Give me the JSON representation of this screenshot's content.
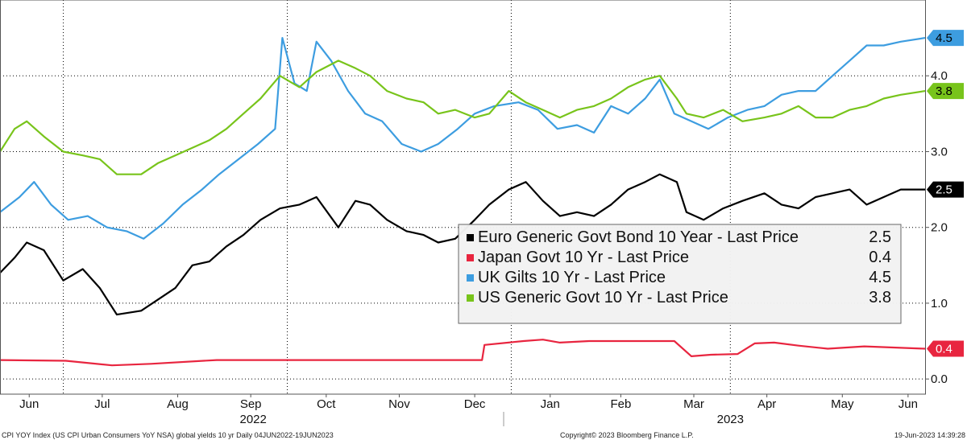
{
  "chart_data": {
    "type": "line",
    "xlim": [
      "2022-06-04",
      "2023-06-19"
    ],
    "ylim": [
      -0.2,
      5.0
    ],
    "yticks": [
      "0.0",
      "1.0",
      "2.0",
      "3.0",
      "4.0"
    ],
    "yticks_values": [
      0,
      1,
      2,
      3,
      4
    ],
    "grid": true,
    "legend_position": "lower-right",
    "months": [
      {
        "label": "Jun",
        "date": "2022-06-16"
      },
      {
        "label": "Jul",
        "date": "2022-07-16"
      },
      {
        "label": "Aug",
        "date": "2022-08-16"
      },
      {
        "label": "Sep",
        "date": "2022-09-15"
      },
      {
        "label": "Oct",
        "date": "2022-10-16"
      },
      {
        "label": "Nov",
        "date": "2022-11-15"
      },
      {
        "label": "Dec",
        "date": "2022-12-16"
      },
      {
        "label": "Jan",
        "date": "2023-01-16"
      },
      {
        "label": "Feb",
        "date": "2023-02-14"
      },
      {
        "label": "Mar",
        "date": "2023-03-16"
      },
      {
        "label": "Apr",
        "date": "2023-04-15"
      },
      {
        "label": "May",
        "date": "2023-05-16"
      },
      {
        "label": "Jun",
        "date": "2023-06-12"
      }
    ],
    "years": [
      {
        "label": "2022",
        "date": "2022-09-16"
      },
      {
        "label": "2023",
        "date": "2023-03-31"
      }
    ],
    "year_divider": "2023-01-01",
    "series": [
      {
        "name": "Euro Generic Govt Bond 10 Year - Last Price",
        "legend_value": "2.5",
        "last": "2.5",
        "color": "#000000",
        "badge_text_color": "#ffffff",
        "x": [
          "2022-06-04",
          "2022-06-10",
          "2022-06-15",
          "2022-06-22",
          "2022-06-30",
          "2022-07-08",
          "2022-07-15",
          "2022-07-22",
          "2022-08-01",
          "2022-08-08",
          "2022-08-15",
          "2022-08-22",
          "2022-08-29",
          "2022-09-05",
          "2022-09-12",
          "2022-09-19",
          "2022-09-27",
          "2022-10-05",
          "2022-10-12",
          "2022-10-21",
          "2022-10-28",
          "2022-11-03",
          "2022-11-10",
          "2022-11-18",
          "2022-11-25",
          "2022-12-01",
          "2022-12-08",
          "2022-12-16",
          "2022-12-22",
          "2022-12-30",
          "2023-01-06",
          "2023-01-13",
          "2023-01-20",
          "2023-01-27",
          "2023-02-03",
          "2023-02-10",
          "2023-02-17",
          "2023-02-24",
          "2023-03-02",
          "2023-03-09",
          "2023-03-13",
          "2023-03-20",
          "2023-03-28",
          "2023-04-05",
          "2023-04-14",
          "2023-04-21",
          "2023-04-28",
          "2023-05-05",
          "2023-05-12",
          "2023-05-19",
          "2023-05-26",
          "2023-06-02",
          "2023-06-09",
          "2023-06-19"
        ],
        "y": [
          1.4,
          1.6,
          1.8,
          1.7,
          1.3,
          1.45,
          1.2,
          0.85,
          0.9,
          1.05,
          1.2,
          1.5,
          1.55,
          1.75,
          1.9,
          2.1,
          2.25,
          2.3,
          2.4,
          2.0,
          2.35,
          2.3,
          2.1,
          1.95,
          1.9,
          1.8,
          1.85,
          2.1,
          2.3,
          2.5,
          2.6,
          2.35,
          2.15,
          2.2,
          2.15,
          2.3,
          2.5,
          2.6,
          2.7,
          2.6,
          2.2,
          2.1,
          2.25,
          2.35,
          2.45,
          2.3,
          2.25,
          2.4,
          2.45,
          2.5,
          2.3,
          2.4,
          2.5,
          2.5
        ]
      },
      {
        "name": "Japan Govt 10 Yr - Last Price",
        "legend_value": "0.4",
        "last": "0.4",
        "color": "#e8253f",
        "badge_text_color": "#ffffff",
        "x": [
          "2022-06-04",
          "2022-07-01",
          "2022-07-20",
          "2022-08-05",
          "2022-09-01",
          "2022-10-01",
          "2022-11-01",
          "2022-12-01",
          "2022-12-19",
          "2022-12-20",
          "2023-01-05",
          "2023-01-13",
          "2023-01-20",
          "2023-02-01",
          "2023-02-20",
          "2023-03-08",
          "2023-03-15",
          "2023-03-23",
          "2023-04-03",
          "2023-04-10",
          "2023-04-18",
          "2023-04-28",
          "2023-05-10",
          "2023-05-25",
          "2023-06-19"
        ],
        "y": [
          0.25,
          0.24,
          0.18,
          0.2,
          0.25,
          0.25,
          0.25,
          0.25,
          0.25,
          0.45,
          0.5,
          0.52,
          0.48,
          0.5,
          0.5,
          0.5,
          0.3,
          0.32,
          0.33,
          0.47,
          0.48,
          0.44,
          0.4,
          0.43,
          0.4
        ]
      },
      {
        "name": "UK Gilts 10 Yr - Last Price",
        "legend_value": "4.5",
        "last": "4.5",
        "color": "#3d9de0",
        "badge_text_color": "#000000",
        "x": [
          "2022-06-04",
          "2022-06-12",
          "2022-06-18",
          "2022-06-25",
          "2022-07-02",
          "2022-07-10",
          "2022-07-18",
          "2022-07-26",
          "2022-08-02",
          "2022-08-10",
          "2022-08-18",
          "2022-08-26",
          "2022-09-02",
          "2022-09-10",
          "2022-09-18",
          "2022-09-25",
          "2022-09-28",
          "2022-10-03",
          "2022-10-08",
          "2022-10-12",
          "2022-10-18",
          "2022-10-25",
          "2022-11-01",
          "2022-11-08",
          "2022-11-16",
          "2022-11-24",
          "2022-12-01",
          "2022-12-09",
          "2022-12-16",
          "2022-12-24",
          "2023-01-03",
          "2023-01-11",
          "2023-01-19",
          "2023-01-27",
          "2023-02-03",
          "2023-02-10",
          "2023-02-17",
          "2023-02-24",
          "2023-03-02",
          "2023-03-08",
          "2023-03-15",
          "2023-03-22",
          "2023-03-30",
          "2023-04-07",
          "2023-04-14",
          "2023-04-21",
          "2023-04-28",
          "2023-05-05",
          "2023-05-12",
          "2023-05-19",
          "2023-05-26",
          "2023-06-02",
          "2023-06-09",
          "2023-06-19"
        ],
        "y": [
          2.2,
          2.4,
          2.6,
          2.3,
          2.1,
          2.15,
          2.0,
          1.95,
          1.85,
          2.05,
          2.3,
          2.5,
          2.7,
          2.9,
          3.1,
          3.3,
          4.5,
          3.9,
          3.8,
          4.45,
          4.2,
          3.8,
          3.5,
          3.4,
          3.1,
          3.0,
          3.1,
          3.3,
          3.5,
          3.6,
          3.65,
          3.55,
          3.3,
          3.35,
          3.25,
          3.6,
          3.5,
          3.7,
          3.95,
          3.5,
          3.4,
          3.3,
          3.45,
          3.55,
          3.6,
          3.75,
          3.8,
          3.8,
          4.0,
          4.2,
          4.4,
          4.4,
          4.45,
          4.5
        ]
      },
      {
        "name": "US Generic Govt 10 Yr - Last Price",
        "legend_value": "3.8",
        "last": "3.8",
        "color": "#78c41b",
        "badge_text_color": "#000000",
        "x": [
          "2022-06-04",
          "2022-06-10",
          "2022-06-15",
          "2022-06-22",
          "2022-06-30",
          "2022-07-08",
          "2022-07-15",
          "2022-07-22",
          "2022-08-01",
          "2022-08-08",
          "2022-08-15",
          "2022-08-22",
          "2022-08-29",
          "2022-09-05",
          "2022-09-12",
          "2022-09-19",
          "2022-09-27",
          "2022-10-05",
          "2022-10-12",
          "2022-10-21",
          "2022-10-28",
          "2022-11-03",
          "2022-11-10",
          "2022-11-18",
          "2022-11-25",
          "2022-12-01",
          "2022-12-08",
          "2022-12-16",
          "2022-12-22",
          "2022-12-30",
          "2023-01-06",
          "2023-01-13",
          "2023-01-20",
          "2023-01-27",
          "2023-02-03",
          "2023-02-10",
          "2023-02-17",
          "2023-02-24",
          "2023-03-02",
          "2023-03-09",
          "2023-03-13",
          "2023-03-20",
          "2023-03-28",
          "2023-04-05",
          "2023-04-14",
          "2023-04-21",
          "2023-04-28",
          "2023-05-05",
          "2023-05-12",
          "2023-05-19",
          "2023-05-26",
          "2023-06-02",
          "2023-06-09",
          "2023-06-19"
        ],
        "y": [
          3.0,
          3.3,
          3.4,
          3.2,
          3.0,
          2.95,
          2.9,
          2.7,
          2.7,
          2.85,
          2.95,
          3.05,
          3.15,
          3.3,
          3.5,
          3.7,
          4.0,
          3.85,
          4.05,
          4.2,
          4.1,
          4.0,
          3.8,
          3.7,
          3.65,
          3.5,
          3.55,
          3.45,
          3.5,
          3.8,
          3.65,
          3.55,
          3.45,
          3.55,
          3.6,
          3.7,
          3.85,
          3.95,
          4.0,
          3.7,
          3.5,
          3.45,
          3.55,
          3.4,
          3.45,
          3.5,
          3.6,
          3.45,
          3.45,
          3.55,
          3.6,
          3.7,
          3.75,
          3.8
        ]
      }
    ]
  },
  "footer": {
    "left": "CPI YOY Index (US CPI Urban Consumers YoY NSA) global yields 10 yr  Daily 04JUN2022-19JUN2023",
    "center": "Copyright© 2023 Bloomberg Finance L.P.",
    "right": "19-Jun-2023 14:39:28"
  }
}
